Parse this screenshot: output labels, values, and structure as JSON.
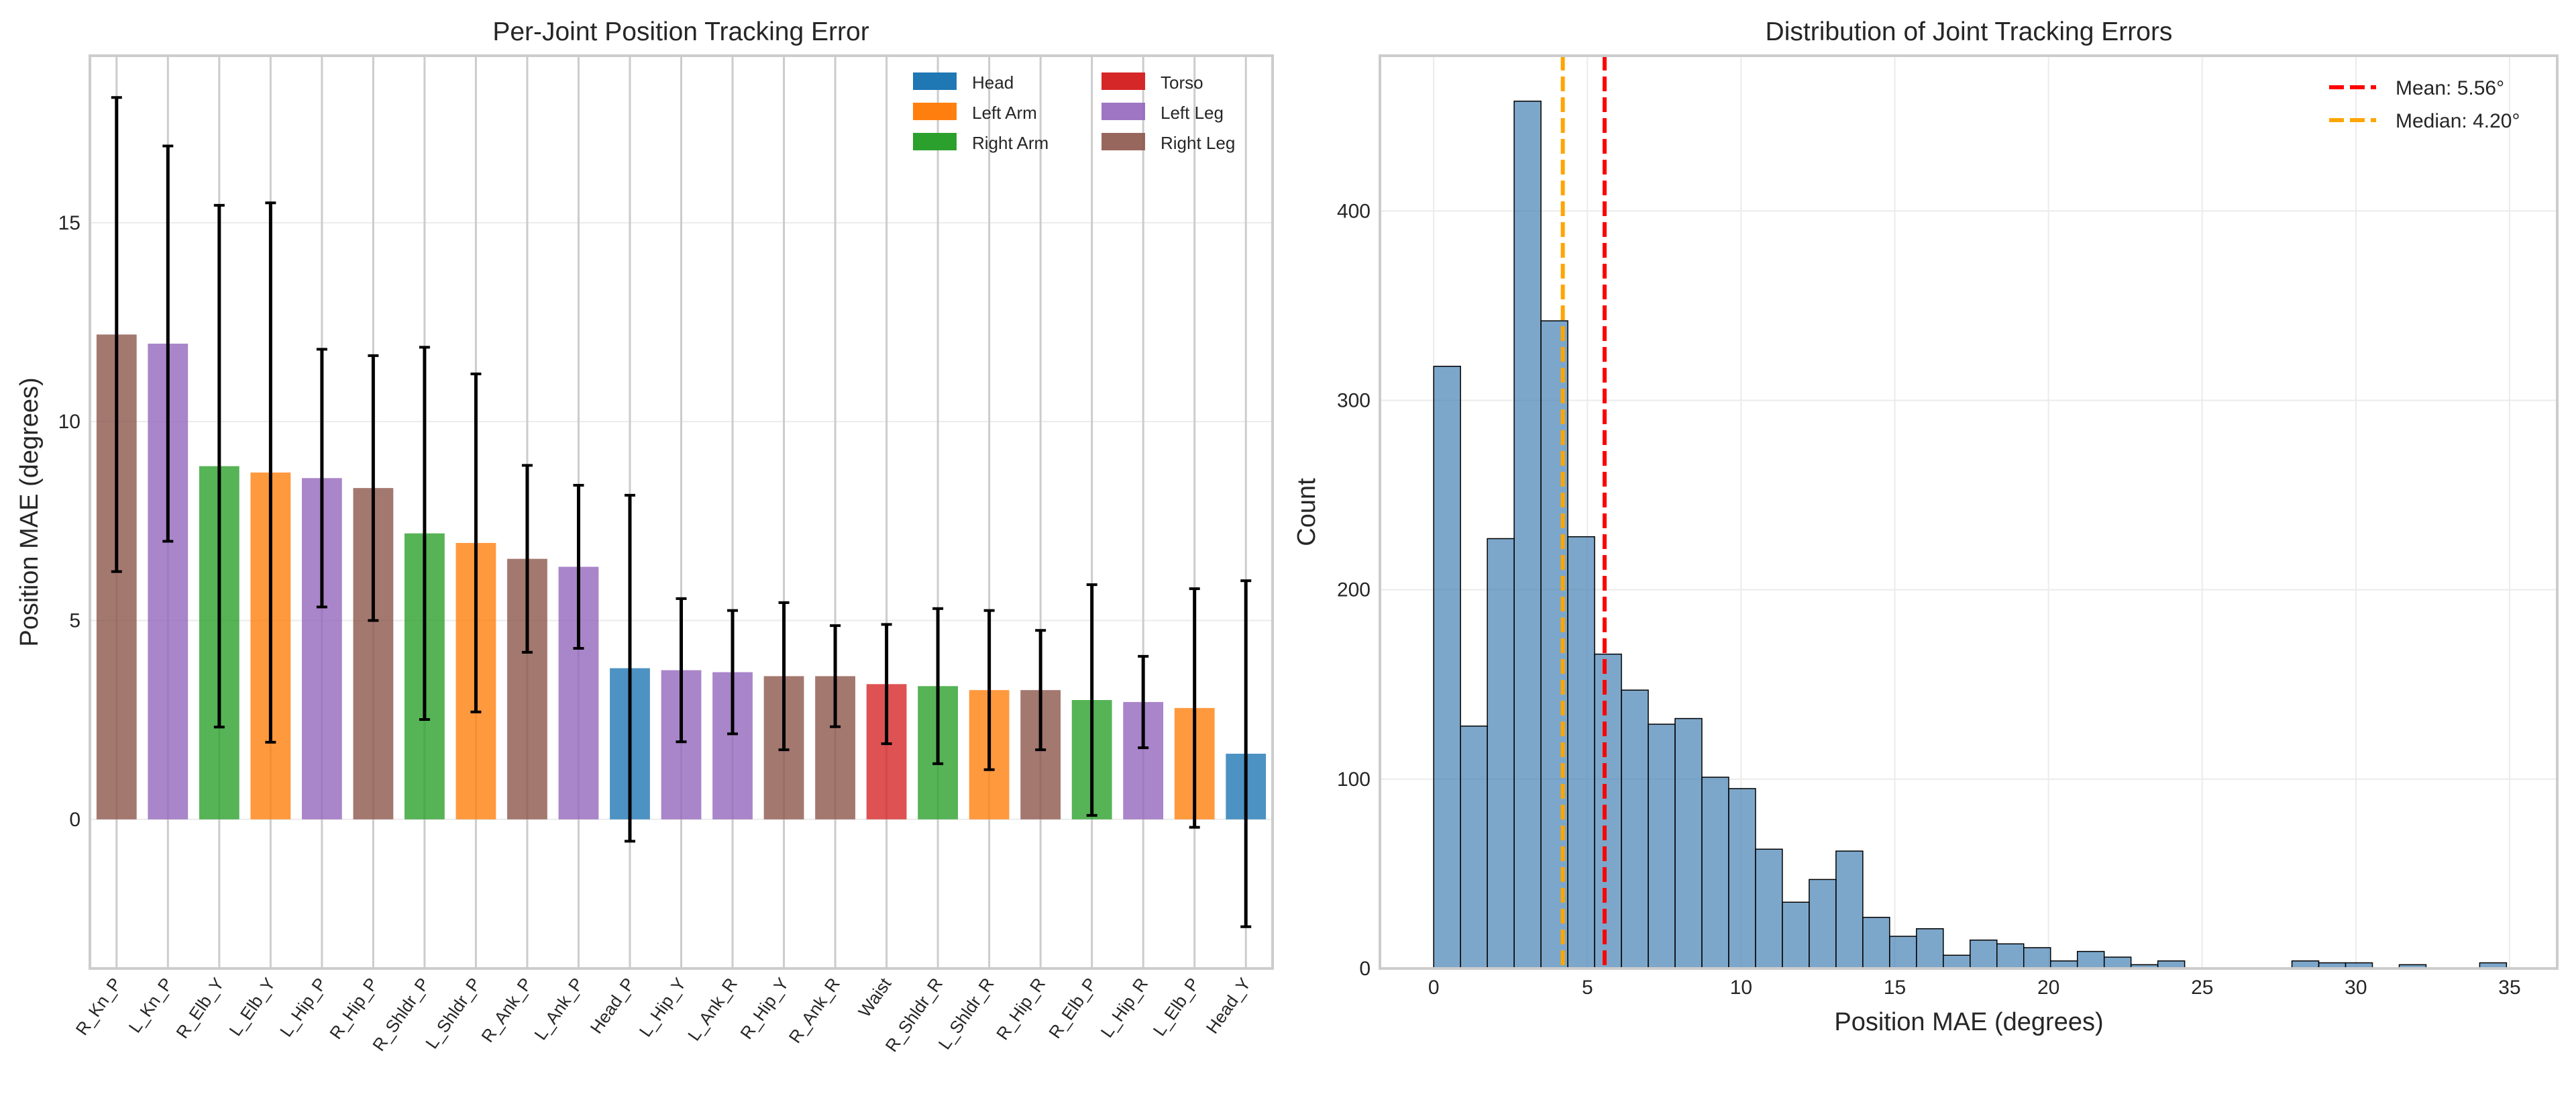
{
  "chart_data": [
    {
      "type": "bar",
      "title": "Per-Joint Position Tracking Error",
      "xlabel": "",
      "ylabel": "Position MAE (degrees)",
      "ylim": [
        -3.75,
        19.2
      ],
      "yticks": [
        0,
        5,
        10,
        15
      ],
      "grid": true,
      "legend_placement": "top-right",
      "legend": [
        {
          "name": "Head",
          "color": "#1f77b4"
        },
        {
          "name": "Left Arm",
          "color": "#ff7f0e"
        },
        {
          "name": "Right Arm",
          "color": "#2ca02c"
        },
        {
          "name": "Torso",
          "color": "#d62728"
        },
        {
          "name": "Left Leg",
          "color": "#9467bd"
        },
        {
          "name": "Right Leg",
          "color": "#8c564b"
        }
      ],
      "categories": [
        "R_Kn_P",
        "L_Kn_P",
        "R_Elb_Y",
        "L_Elb_Y",
        "L_Hip_P",
        "R_Hip_P",
        "R_Shldr_P",
        "L_Shldr_P",
        "R_Ank_P",
        "L_Ank_P",
        "Head_P",
        "L_Hip_Y",
        "L_Ank_R",
        "R_Hip_Y",
        "R_Ank_R",
        "Waist",
        "R_Shldr_R",
        "L_Shldr_R",
        "R_Hip_R",
        "R_Elb_P",
        "L_Hip_R",
        "L_Elb_P",
        "Head_Y"
      ],
      "groups": [
        "Right Leg",
        "Left Leg",
        "Right Arm",
        "Left Arm",
        "Left Leg",
        "Right Leg",
        "Right Arm",
        "Left Arm",
        "Right Leg",
        "Left Leg",
        "Head",
        "Left Leg",
        "Left Leg",
        "Right Leg",
        "Right Leg",
        "Torso",
        "Right Arm",
        "Left Arm",
        "Right Leg",
        "Right Arm",
        "Left Leg",
        "Left Arm",
        "Head"
      ],
      "values": [
        12.19,
        11.96,
        8.88,
        8.72,
        8.58,
        8.33,
        7.19,
        6.95,
        6.55,
        6.35,
        3.8,
        3.75,
        3.7,
        3.6,
        3.6,
        3.4,
        3.35,
        3.25,
        3.25,
        3.0,
        2.95,
        2.8,
        1.65
      ],
      "errors": [
        5.96,
        4.97,
        6.56,
        6.78,
        3.24,
        3.33,
        4.68,
        4.25,
        2.35,
        2.05,
        4.35,
        1.8,
        1.55,
        1.85,
        1.27,
        1.5,
        1.95,
        2.0,
        1.5,
        2.9,
        1.15,
        3.0,
        4.35
      ]
    },
    {
      "type": "bar",
      "subtype": "histogram",
      "title": "Distribution of Joint Tracking Errors",
      "xlabel": "Position MAE (degrees)",
      "ylabel": "Count",
      "xlim": [
        -1.75,
        36.55
      ],
      "ylim": [
        0,
        482
      ],
      "xticks": [
        0,
        5,
        10,
        15,
        20,
        25,
        30,
        35
      ],
      "yticks": [
        0,
        100,
        200,
        300,
        400
      ],
      "grid": true,
      "bar_color": "#4682b4",
      "bin_start": 0,
      "bin_width": 0.8725,
      "counts": [
        318,
        128,
        227,
        458,
        342,
        228,
        166,
        147,
        129,
        132,
        101,
        95,
        63,
        35,
        47,
        62,
        27,
        17,
        21,
        7,
        15,
        13,
        11,
        4,
        9,
        6,
        2,
        4,
        0,
        0,
        0,
        0,
        4,
        3,
        3,
        0,
        2,
        0,
        0,
        3
      ],
      "legend_placement": "top-right",
      "reference_lines": [
        {
          "label": "Mean: 5.56°",
          "x": 5.56,
          "color": "#ff0000"
        },
        {
          "label": "Median: 4.20°",
          "x": 4.2,
          "color": "#ffa500"
        }
      ]
    }
  ]
}
